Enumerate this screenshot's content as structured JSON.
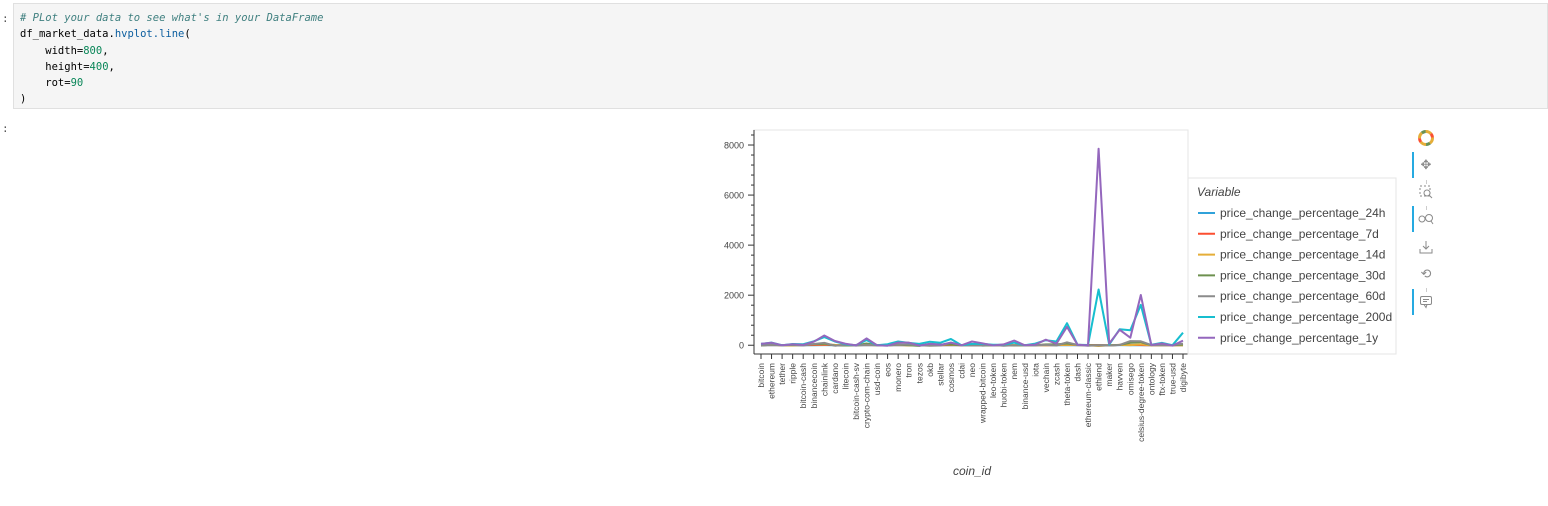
{
  "cell": {
    "input_prompt": ":",
    "output_prompt": ":",
    "code": {
      "comment": "# PLot your data to see what's in your DataFrame",
      "line1_obj": "df_market_data.",
      "line1_attr": "hvplot.line",
      "line1_tail": "(",
      "line2_key": "    width=",
      "line2_val": "800",
      "line2_tail": ",",
      "line3_key": "    height=",
      "line3_val": "400",
      "line3_tail": ",",
      "line4_key": "    rot=",
      "line4_val": "90",
      "line5": ")"
    }
  },
  "toolbar": {
    "icons": [
      "bokeh-logo-icon",
      "pan-icon",
      "box-zoom-icon",
      "wheel-zoom-icon",
      "save-icon",
      "reset-icon",
      "hover-icon"
    ]
  },
  "colors": {
    "price_change_percentage_24h": "#30a2da",
    "price_change_percentage_7d": "#fc4f30",
    "price_change_percentage_14d": "#e5ae38",
    "price_change_percentage_30d": "#6d904f",
    "price_change_percentage_60d": "#8b8b8b",
    "price_change_percentage_200d": "#17becf",
    "price_change_percentage_1y": "#9467bd"
  },
  "chart_data": {
    "type": "line",
    "title": "",
    "xlabel": "coin_id",
    "ylabel": "",
    "ylim": [
      -350,
      8600
    ],
    "yticks": [
      0,
      2000,
      4000,
      6000,
      8000
    ],
    "grid": false,
    "legend_title": "Variable",
    "legend_position": "right",
    "categories": [
      "bitcoin",
      "ethereum",
      "tether",
      "ripple",
      "bitcoin-cash",
      "binancecoin",
      "chainlink",
      "cardano",
      "litecoin",
      "bitcoin-cash-sv",
      "crypto-com-chain",
      "usd-coin",
      "eos",
      "monero",
      "tron",
      "tezos",
      "okb",
      "stellar",
      "cosmos",
      "cdai",
      "neo",
      "wrapped-bitcoin",
      "leo-token",
      "huobi-token",
      "nem",
      "binance-usd",
      "iota",
      "vechain",
      "zcash",
      "theta-token",
      "dash",
      "ethereum-classic",
      "ethlend",
      "maker",
      "havven",
      "omisego",
      "celsius-degree-token",
      "ontology",
      "ftx-token",
      "true-usd",
      "digibyte"
    ],
    "series": [
      {
        "name": "price_change_percentage_24h",
        "values": [
          1,
          1,
          0,
          0,
          1,
          3,
          4,
          2,
          1,
          -1,
          4,
          0,
          0,
          2,
          1,
          -1,
          2,
          1,
          1,
          0,
          1,
          0,
          0,
          0,
          1,
          0,
          1,
          0,
          2,
          1,
          0,
          0,
          2,
          0,
          6,
          1,
          2,
          1,
          1,
          0,
          -1
        ]
      },
      {
        "name": "price_change_percentage_7d",
        "values": [
          7,
          10,
          0,
          4,
          7,
          9,
          22,
          5,
          2,
          5,
          10,
          0,
          7,
          10,
          1,
          -2,
          12,
          3,
          11,
          0,
          10,
          7,
          -3,
          0,
          2,
          0,
          4,
          0,
          5,
          20,
          5,
          5,
          7,
          -6,
          15,
          14,
          8,
          -1,
          -1,
          0,
          4
        ]
      },
      {
        "name": "price_change_percentage_14d",
        "values": [
          7,
          13,
          0,
          -12,
          20,
          36,
          47,
          12,
          11,
          1,
          20,
          0,
          7,
          12,
          -6,
          2,
          10,
          17,
          16,
          0,
          15,
          7,
          -3,
          0,
          11,
          0,
          5,
          3,
          12,
          22,
          9,
          3,
          -32,
          3,
          12,
          5,
          33,
          2,
          6,
          0,
          0
        ]
      },
      {
        "name": "price_change_percentage_30d",
        "values": [
          -15,
          24,
          0,
          11,
          5,
          39,
          63,
          -12,
          -12,
          -11,
          69,
          0,
          -9,
          25,
          -1,
          -28,
          56,
          25,
          29,
          0,
          35,
          -15,
          0,
          4,
          -9,
          0,
          -1,
          33,
          32,
          71,
          21,
          3,
          -2,
          -6,
          12,
          98,
          120,
          4,
          33,
          0,
          25
        ]
      },
      {
        "name": "price_change_percentage_60d",
        "values": [
          -9,
          21,
          0,
          20,
          -11,
          48,
          92,
          -17,
          21,
          -15,
          16,
          0,
          -5,
          22,
          31,
          -2,
          -20,
          -9,
          100,
          0,
          -10,
          -9,
          9,
          -20,
          0,
          -2,
          -5,
          19,
          -9,
          117,
          9,
          -20,
          -4,
          -10,
          10,
          164,
          156,
          6,
          0,
          0,
          65
        ]
      },
      {
        "name": "price_change_percentage_200d",
        "values": [
          55,
          106,
          0,
          48,
          42,
          158,
          326,
          149,
          41,
          0,
          207,
          0,
          40,
          150,
          95,
          55,
          140,
          103,
          250,
          0,
          53,
          55,
          19,
          27,
          100,
          0,
          64,
          200,
          150,
          880,
          21,
          11,
          2227,
          30,
          640,
          600,
          1611,
          20,
          97,
          0,
          500
        ]
      },
      {
        "name": "price_change_percentage_1y",
        "values": [
          58,
          101,
          -2,
          38,
          14,
          140,
          391,
          169,
          60,
          -5,
          275,
          0,
          -20,
          104,
          107,
          -13,
          56,
          17,
          107,
          -3,
          151,
          79,
          -11,
          33,
          184,
          -2,
          24,
          220,
          63,
          733,
          23,
          -8,
          7852,
          71,
          615,
          300,
          2009,
          8,
          70,
          -13,
          184
        ]
      }
    ]
  }
}
